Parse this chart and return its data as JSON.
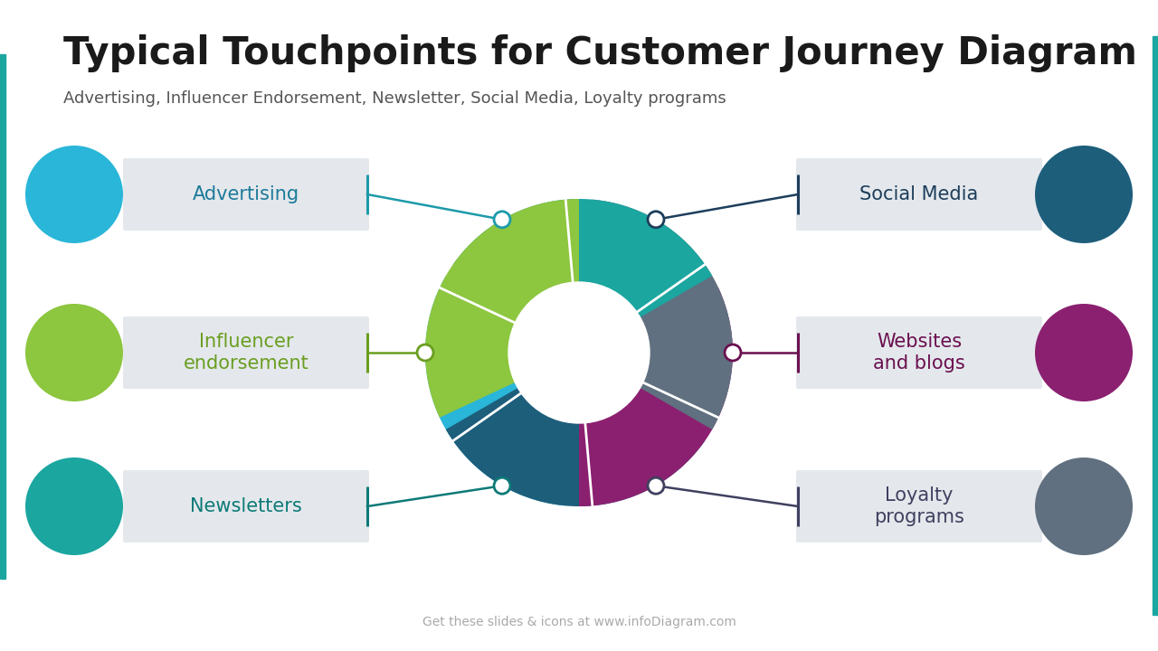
{
  "title": "Typical Touchpoints for Customer Journey Diagram",
  "subtitle": "Advertising, Influencer Endorsement, Newsletter, Social Media, Loyalty programs",
  "title_fontsize": 30,
  "subtitle_fontsize": 13,
  "background_color": "#ffffff",
  "title_color": "#1a1a1a",
  "subtitle_color": "#555555",
  "footer_text": "Get these slides & icons at www.infoDiagram.com",
  "footer_color": "#aaaaaa",
  "left_items": [
    {
      "label": "Advertising",
      "circle_color": "#29b6d8",
      "text_color": "#1d7a9a",
      "line_color": "#1d9aaa"
    },
    {
      "label": "Influencer\nendorsement",
      "circle_color": "#8dc63f",
      "text_color": "#6a9e20",
      "line_color": "#6a9e20"
    },
    {
      "label": "Newsletters",
      "circle_color": "#1ba6a0",
      "text_color": "#0d7a78",
      "line_color": "#0d7a78"
    }
  ],
  "right_items": [
    {
      "label": "Social Media",
      "circle_color": "#1d5e7b",
      "text_color": "#1d3e5b",
      "line_color": "#1d3e5b"
    },
    {
      "label": "Websites\nand blogs",
      "circle_color": "#8b2070",
      "text_color": "#6b1050",
      "line_color": "#6b1050"
    },
    {
      "label": "Loyalty\nprograms",
      "circle_color": "#607080",
      "text_color": "#404060",
      "line_color": "#404060"
    }
  ],
  "segment_colors": [
    "#29b6d8",
    "#1d5e7b",
    "#8b2070",
    "#607080",
    "#1ba6a0",
    "#8dc63f"
  ],
  "connector_dot_color": "#ffffff",
  "box_color": "#e4e8ec",
  "accent_color": "#1ba6a0",
  "left_bracket_color": "#1d9aaa",
  "right_bracket_color": "#1d3e5b"
}
